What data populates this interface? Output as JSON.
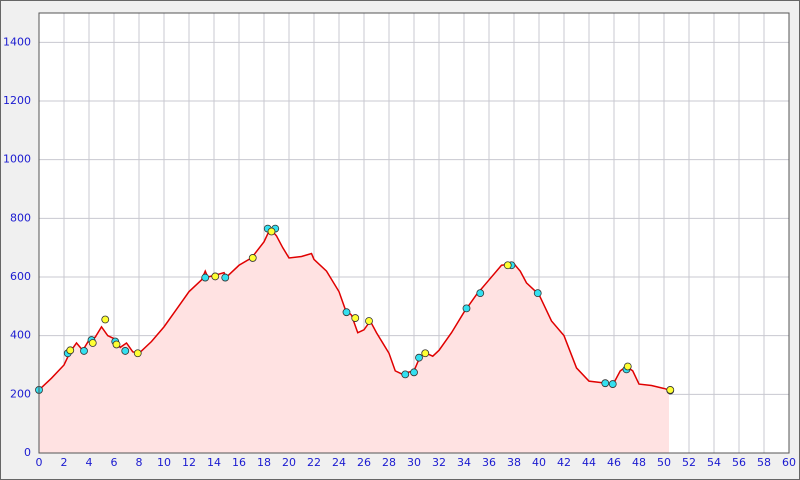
{
  "chart_data": {
    "type": "line",
    "xlim": [
      0,
      60
    ],
    "ylim": [
      0,
      1500
    ],
    "xticks": [
      0,
      2,
      4,
      6,
      8,
      10,
      12,
      14,
      16,
      18,
      20,
      22,
      24,
      26,
      28,
      30,
      32,
      34,
      36,
      38,
      40,
      42,
      44,
      46,
      48,
      50,
      52,
      54,
      56,
      58,
      60
    ],
    "yticks": [
      0,
      200,
      400,
      600,
      800,
      1000,
      1200,
      1400
    ],
    "grid": true,
    "series": [
      {
        "color": "#e00000",
        "fill": "#ffe2e2",
        "style": "area",
        "x": [
          0,
          1,
          2,
          2.5,
          3,
          3.5,
          4,
          4.5,
          5,
          5.5,
          6,
          6.5,
          7,
          7.5,
          8,
          9,
          10,
          11,
          12,
          13,
          13.3,
          13.5,
          14,
          14.8,
          15,
          16,
          17,
          18,
          18.5,
          19,
          19.5,
          20,
          21,
          21.8,
          22,
          23,
          24,
          24.5,
          25,
          25.5,
          26,
          26.5,
          27,
          28,
          28.5,
          29,
          30,
          30.5,
          31,
          31.5,
          32,
          33,
          34,
          35,
          36,
          37,
          38,
          38.5,
          39,
          40,
          41,
          42,
          43,
          44,
          45,
          45.5,
          46,
          46.5,
          47,
          47.5,
          48,
          49,
          50,
          50.4
        ],
        "values": [
          215,
          255,
          300,
          345,
          375,
          350,
          385,
          395,
          430,
          400,
          390,
          360,
          375,
          345,
          340,
          380,
          430,
          490,
          550,
          590,
          620,
          600,
          605,
          615,
          600,
          640,
          665,
          720,
          765,
          740,
          700,
          665,
          670,
          680,
          660,
          620,
          550,
          490,
          470,
          410,
          420,
          450,
          410,
          340,
          280,
          270,
          280,
          330,
          340,
          330,
          350,
          410,
          480,
          540,
          590,
          640,
          645,
          620,
          580,
          540,
          450,
          400,
          290,
          245,
          240,
          235,
          240,
          280,
          295,
          280,
          235,
          230,
          220,
          215
        ]
      },
      {
        "color": "#33e0f0",
        "style": "markers",
        "x": [
          0,
          2.3,
          3.6,
          4.2,
          6.1,
          6.9,
          13.3,
          14.9,
          18.3,
          18.9,
          24.6,
          29.3,
          30.0,
          30.4,
          34.2,
          35.3,
          37.8,
          39.9,
          45.3,
          45.9,
          47.0,
          50.5
        ],
        "values": [
          215,
          340,
          348,
          385,
          380,
          348,
          598,
          598,
          765,
          765,
          480,
          268,
          275,
          325,
          493,
          545,
          640,
          545,
          238,
          235,
          285,
          213
        ]
      },
      {
        "color": "#ffff33",
        "style": "markers",
        "x": [
          2.5,
          4.3,
          5.3,
          6.2,
          7.9,
          14.1,
          17.1,
          18.6,
          25.3,
          26.4,
          30.9,
          37.5,
          47.1,
          50.5
        ],
        "values": [
          350,
          375,
          455,
          370,
          340,
          602,
          665,
          755,
          460,
          450,
          340,
          640,
          295,
          215
        ]
      }
    ]
  }
}
